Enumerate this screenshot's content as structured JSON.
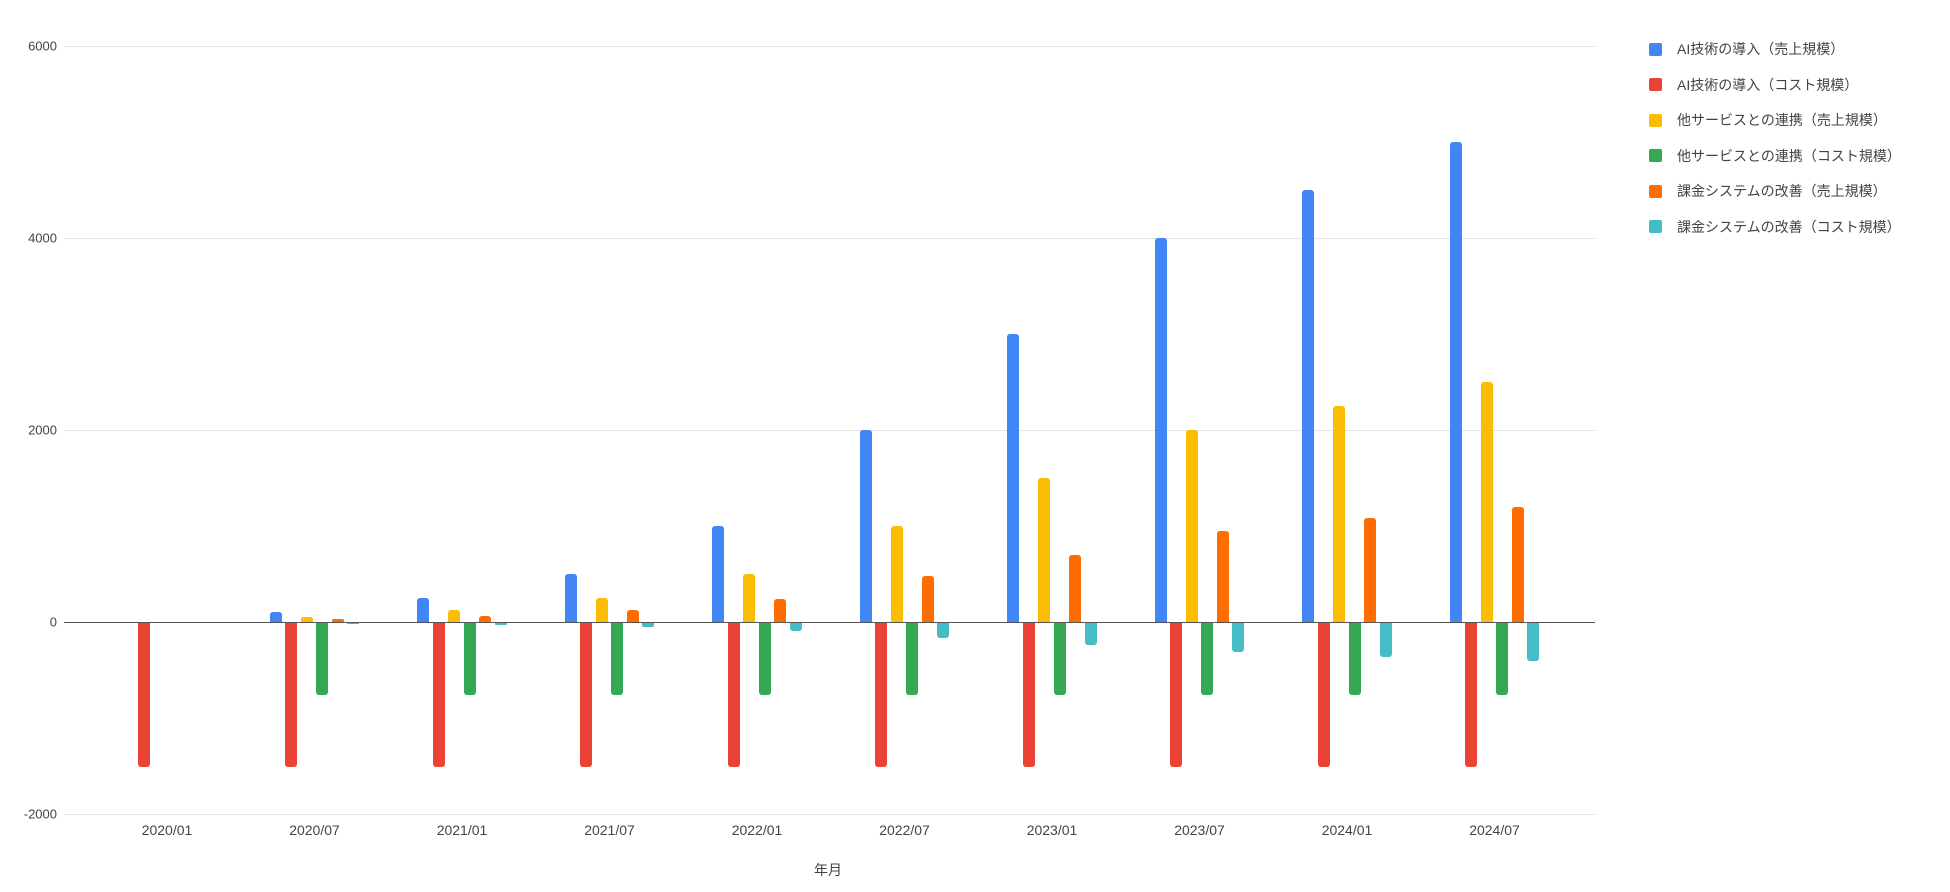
{
  "chart_data": {
    "type": "bar",
    "title": "",
    "xlabel": "年月",
    "ylabel": "",
    "ylim": [
      -2000,
      6000
    ],
    "y_ticks": [
      6000,
      4000,
      2000,
      0,
      -2000
    ],
    "grid": true,
    "legend_position": "right",
    "categories": [
      "2020/01",
      "2020/07",
      "2021/01",
      "2021/07",
      "2022/01",
      "2022/07",
      "2023/01",
      "2023/07",
      "2024/01",
      "2024/07"
    ],
    "series": [
      {
        "name": "AI技術の導入（売上規模）",
        "color": "#4285F4",
        "values": [
          0,
          100,
          250,
          500,
          1000,
          2000,
          3000,
          4000,
          4500,
          5000
        ]
      },
      {
        "name": "AI技術の導入（コスト規模）",
        "color": "#EA4335",
        "values": [
          -1500,
          -1500,
          -1500,
          -1500,
          -1500,
          -1500,
          -1500,
          -1500,
          -1500,
          -1500
        ]
      },
      {
        "name": "他サービスとの連携（売上規模）",
        "color": "#FBBC04",
        "values": [
          0,
          50,
          125,
          250,
          500,
          1000,
          1500,
          2000,
          2250,
          2500
        ]
      },
      {
        "name": "他サービスとの連携（コスト規模）",
        "color": "#34A853",
        "values": [
          0,
          -750,
          -750,
          -750,
          -750,
          -750,
          -750,
          -750,
          -750,
          -750
        ]
      },
      {
        "name": "課金システムの改善（売上規模）",
        "color": "#FF6D01",
        "values": [
          0,
          30,
          60,
          120,
          240,
          480,
          700,
          950,
          1080,
          1200
        ]
      },
      {
        "name": "課金システムの改善（コスト規模）",
        "color": "#46BDC6",
        "values": [
          0,
          -10,
          -20,
          -40,
          -80,
          -160,
          -230,
          -300,
          -350,
          -400
        ]
      }
    ]
  }
}
